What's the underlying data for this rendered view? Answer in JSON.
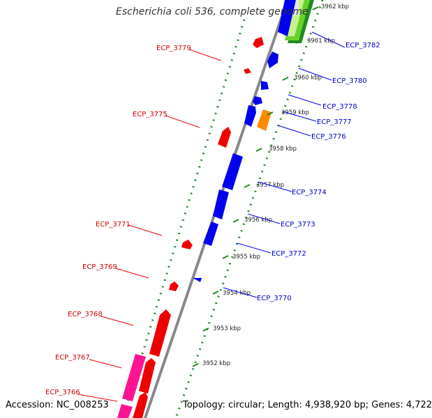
{
  "title": "Escherichia coli 536, complete genome",
  "footer": {
    "accession": "Accession: NC_008253",
    "summary": "Topology: circular; Length: 4,938,920 bp; Genes: 4,722"
  },
  "colors": {
    "minus_strand_gene": "#ee0000",
    "minus_strand_label": "#cc0000",
    "plus_strand_gene": "#0000ee",
    "plus_strand_label": "#0000cc",
    "rna_gene": "#ff8c00",
    "pseudo_gene": "#ff1493",
    "ruler_ticks": "#228822",
    "backbone": "#888888"
  },
  "kbp_ticks": [
    {
      "label": "3952 kbp"
    },
    {
      "label": "3953 kbp"
    },
    {
      "label": "3954 kbp"
    },
    {
      "label": "3955 kbp"
    },
    {
      "label": "3956 kbp"
    },
    {
      "label": "3957 kbp"
    },
    {
      "label": "3958 kbp"
    },
    {
      "label": "3959 kbp"
    },
    {
      "label": "3960 kbp"
    },
    {
      "label": "3961 kbp"
    },
    {
      "label": "3962 kbp"
    }
  ],
  "minus_strand_labels": [
    {
      "label": "ECP_3779"
    },
    {
      "label": "ECP_3775"
    },
    {
      "label": "ECP_3771"
    },
    {
      "label": "ECP_3769"
    },
    {
      "label": "ECP_3768"
    },
    {
      "label": "ECP_3767"
    },
    {
      "label": "ECP_3766"
    }
  ],
  "plus_strand_labels": [
    {
      "label": "ECP_3782"
    },
    {
      "label": "ECP_3780"
    },
    {
      "label": "ECP_3778"
    },
    {
      "label": "ECP_3777"
    },
    {
      "label": "ECP_3776"
    },
    {
      "label": "ECP_3774"
    },
    {
      "label": "ECP_3773"
    },
    {
      "label": "ECP_3772"
    },
    {
      "label": "ECP_3770"
    }
  ]
}
